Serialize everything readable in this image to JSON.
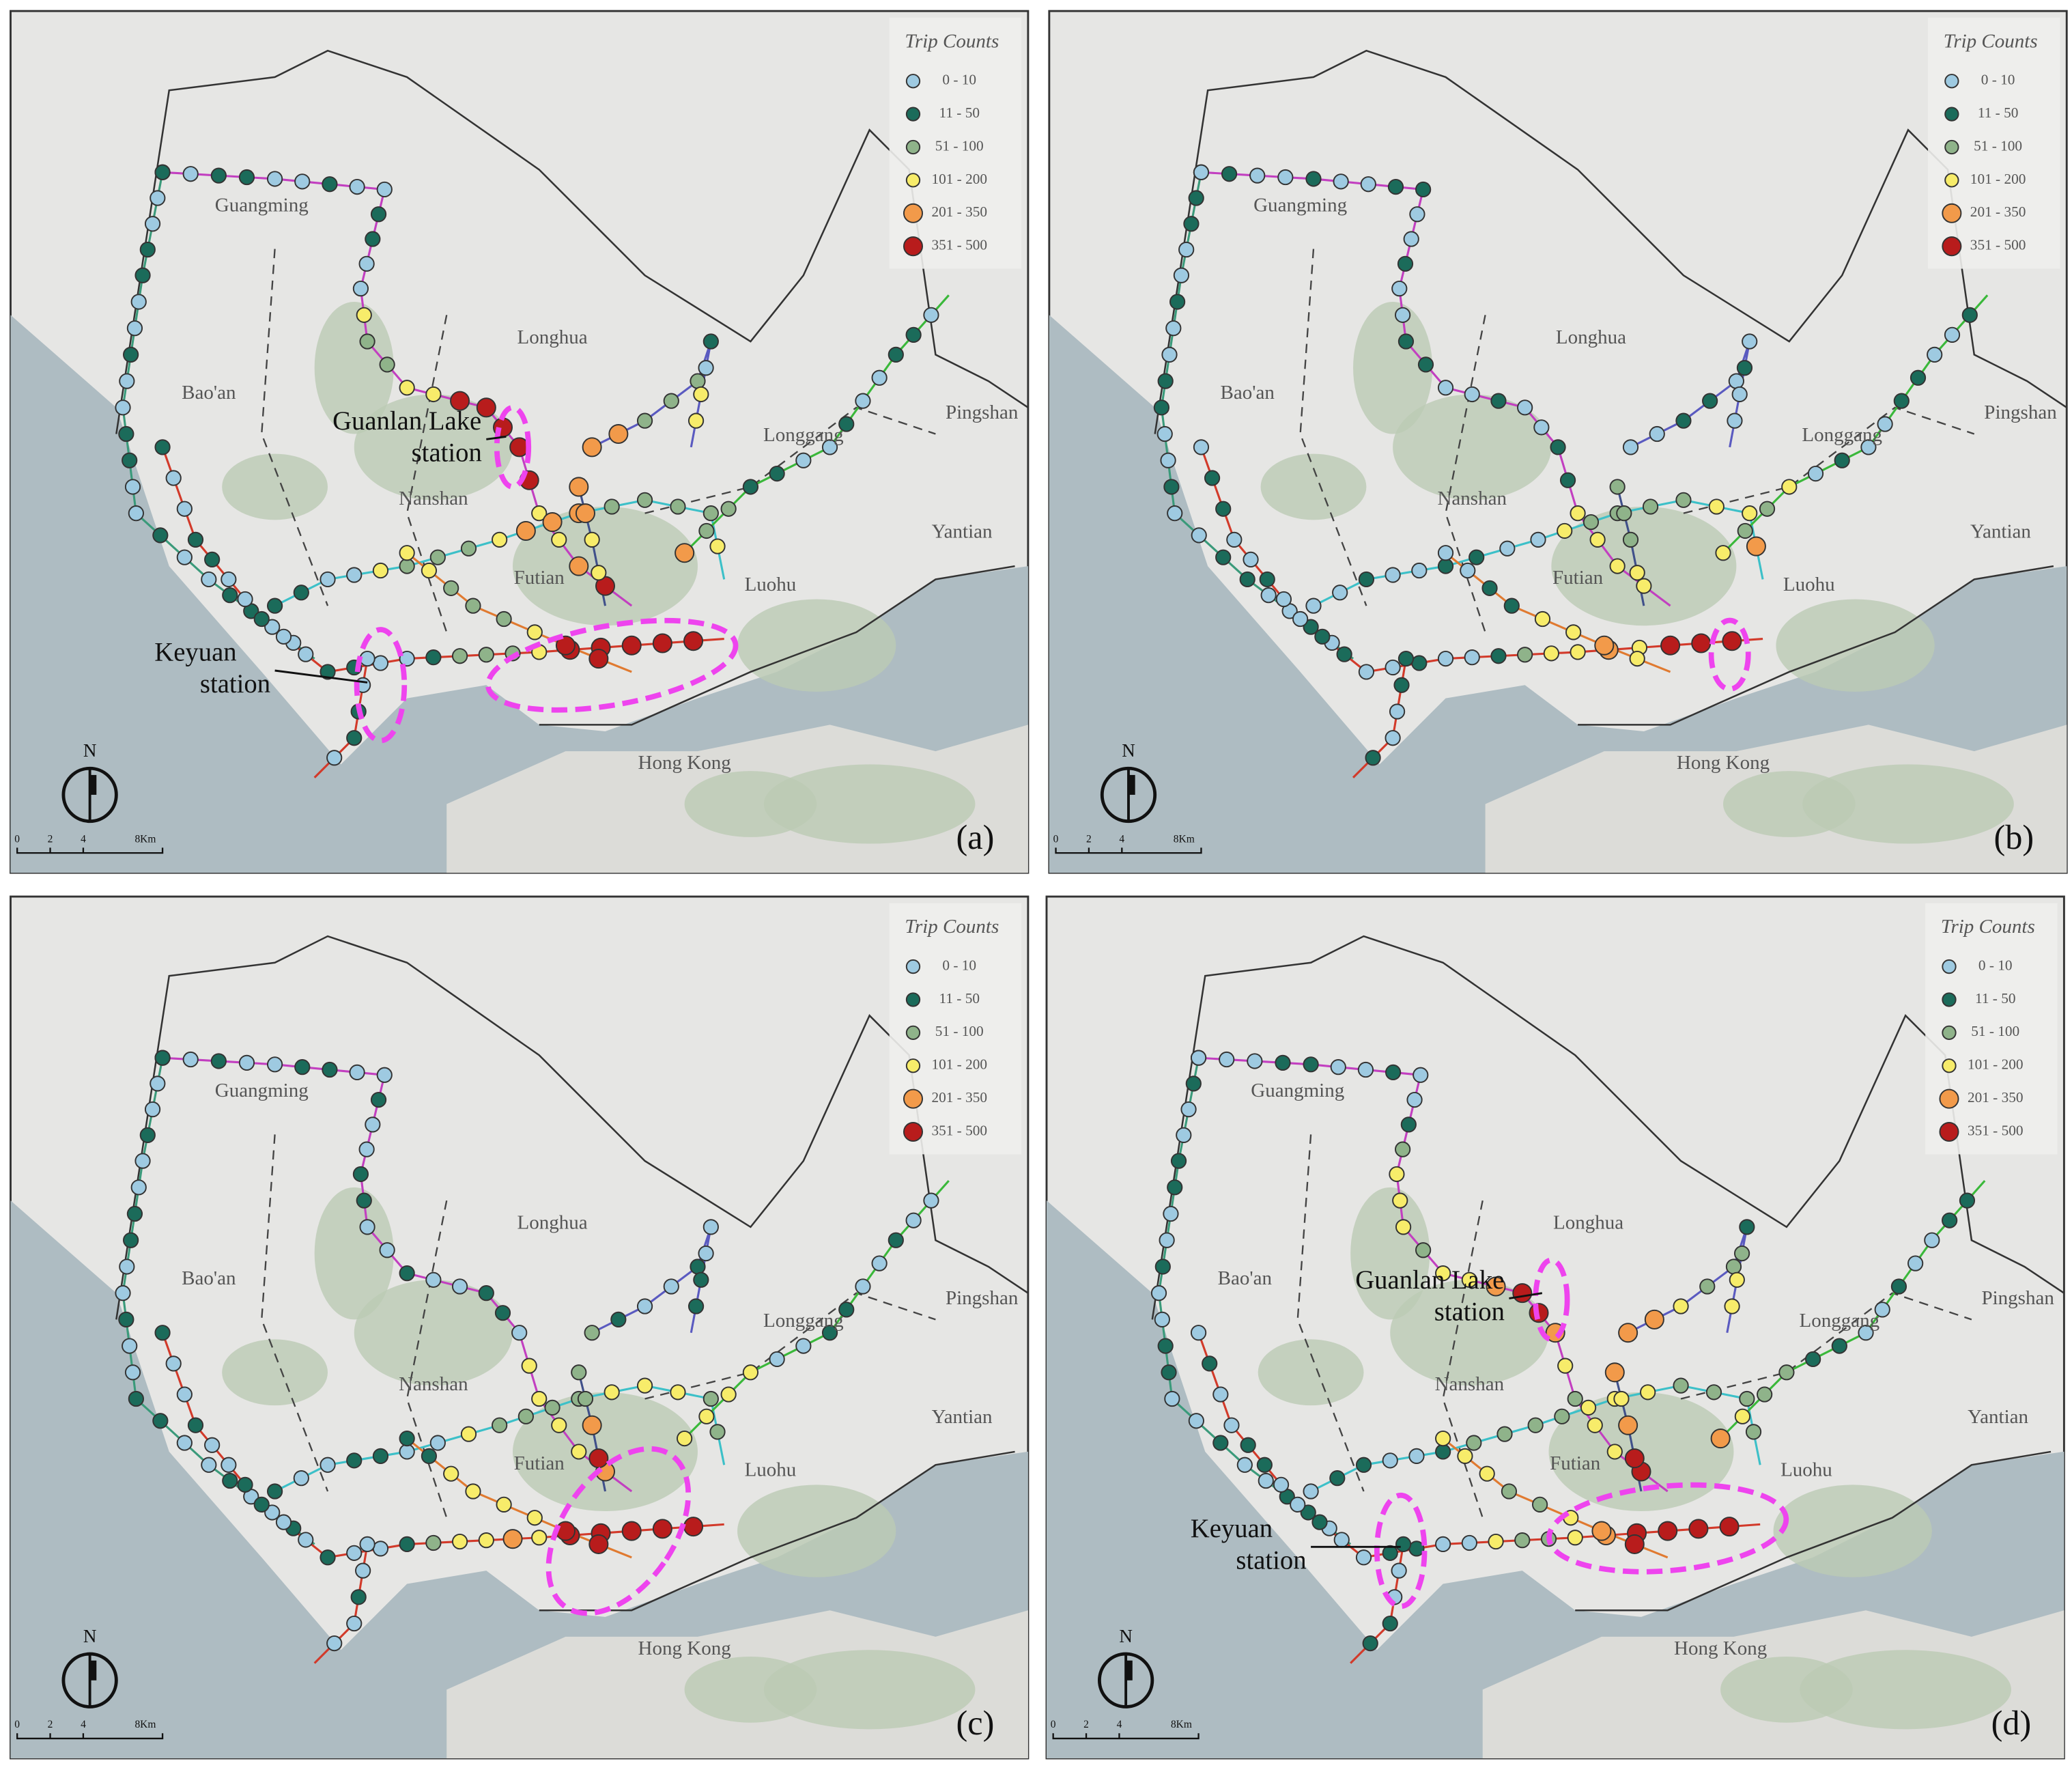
{
  "panels": [
    {
      "label": "(a)",
      "annotations": [
        {
          "lines": [
            "Guanlan Lake",
            "station"
          ]
        },
        {
          "lines": [
            "Keyuan",
            "station"
          ]
        }
      ]
    },
    {
      "label": "(b)",
      "annotations": []
    },
    {
      "label": "(c)",
      "annotations": []
    },
    {
      "label": "(d)",
      "annotations": [
        {
          "lines": [
            "Guanlan Lake",
            "station"
          ]
        },
        {
          "lines": [
            "Keyuan",
            "station"
          ]
        }
      ]
    }
  ],
  "districts": [
    "Guangming",
    "Longhua",
    "Bao'an",
    "Longgang",
    "Pingshan",
    "Nanshan",
    "Yantian",
    "Futian",
    "Luohu",
    "Hong Kong"
  ],
  "legend": {
    "title": "Trip Counts",
    "entries": [
      {
        "label": "0 - 10",
        "color": "#9ecae1"
      },
      {
        "label": "11 - 50",
        "color": "#1b6b5a"
      },
      {
        "label": "51 - 100",
        "color": "#8fb38a"
      },
      {
        "label": "101 - 200",
        "color": "#f7ec6a"
      },
      {
        "label": "201 - 350",
        "color": "#f29a4a"
      },
      {
        "label": "351 - 500",
        "color": "#b81c1c"
      }
    ]
  },
  "north": "N",
  "scale_bar": [
    "0",
    "2",
    "4",
    "8Km"
  ]
}
